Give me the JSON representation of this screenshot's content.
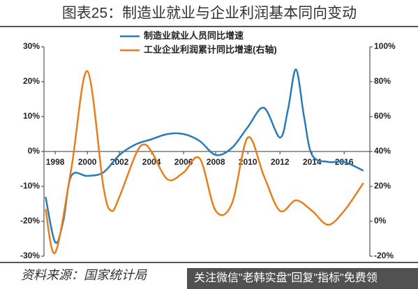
{
  "chart_data": {
    "type": "line",
    "title": "图表25：制造业就业与企业利润基本同向变动",
    "source": "资料来源：国家统计局",
    "watermark": "关注微信\"老韩实盘\"回复\"指标\"免费领",
    "xlim": [
      1997.3,
      2017.6
    ],
    "xticks": [
      1998,
      2000,
      2002,
      2004,
      2006,
      2008,
      2010,
      2012,
      2014,
      2016
    ],
    "ylim": [
      -30,
      30
    ],
    "yticks": [
      {
        "value": -30,
        "label": "-30%"
      },
      {
        "value": -20,
        "label": "-20%"
      },
      {
        "value": -10,
        "label": "-10%"
      },
      {
        "value": 0,
        "label": "0%"
      },
      {
        "value": 10,
        "label": "10%"
      },
      {
        "value": 20,
        "label": "20%"
      },
      {
        "value": 30,
        "label": "30%"
      }
    ],
    "y2lim": [
      -20,
      100
    ],
    "y2ticks": [
      {
        "value": -20,
        "label": "-20%"
      },
      {
        "value": 0,
        "label": "0%"
      },
      {
        "value": 20,
        "label": "20%"
      },
      {
        "value": 40,
        "label": "40%"
      },
      {
        "value": 60,
        "label": "60%"
      },
      {
        "value": 80,
        "label": "80%"
      },
      {
        "value": 100,
        "label": "100%"
      }
    ],
    "series": [
      {
        "name": "制造业就业人员同比增速",
        "color": "#2a7ab8",
        "x": [
          1997.4,
          1998,
          1998.5,
          1999,
          2000,
          2001,
          2002,
          2003,
          2004,
          2005,
          2006,
          2007,
          2008,
          2009,
          2010,
          2011,
          2012,
          2012.5,
          2013,
          2013.5,
          2014,
          2015,
          2016,
          2017.2
        ],
        "values": [
          -13,
          -26,
          -20,
          -7,
          -7,
          -6,
          -1,
          2,
          3.5,
          5,
          5,
          3,
          -1,
          1,
          7,
          12.5,
          4,
          12,
          23.5,
          10,
          -1,
          -3,
          -3,
          -5.5
        ]
      },
      {
        "name": "工业企业利润累计同比增速(右轴)",
        "color": "#e87d1e",
        "axis": "y2",
        "x": [
          1997.4,
          1998,
          1999,
          2000,
          2001,
          2001.5,
          2002,
          2003,
          2003.5,
          2004,
          2005,
          2006,
          2007,
          2008,
          2009,
          2010,
          2011,
          2012,
          2013,
          2014,
          2015,
          2016,
          2017.2
        ],
        "values": [
          7,
          -18,
          30,
          86,
          20,
          6,
          14,
          38,
          44,
          40,
          24,
          28,
          36,
          6,
          10,
          48,
          26,
          6,
          12,
          6,
          -2,
          6,
          22
        ]
      }
    ]
  }
}
